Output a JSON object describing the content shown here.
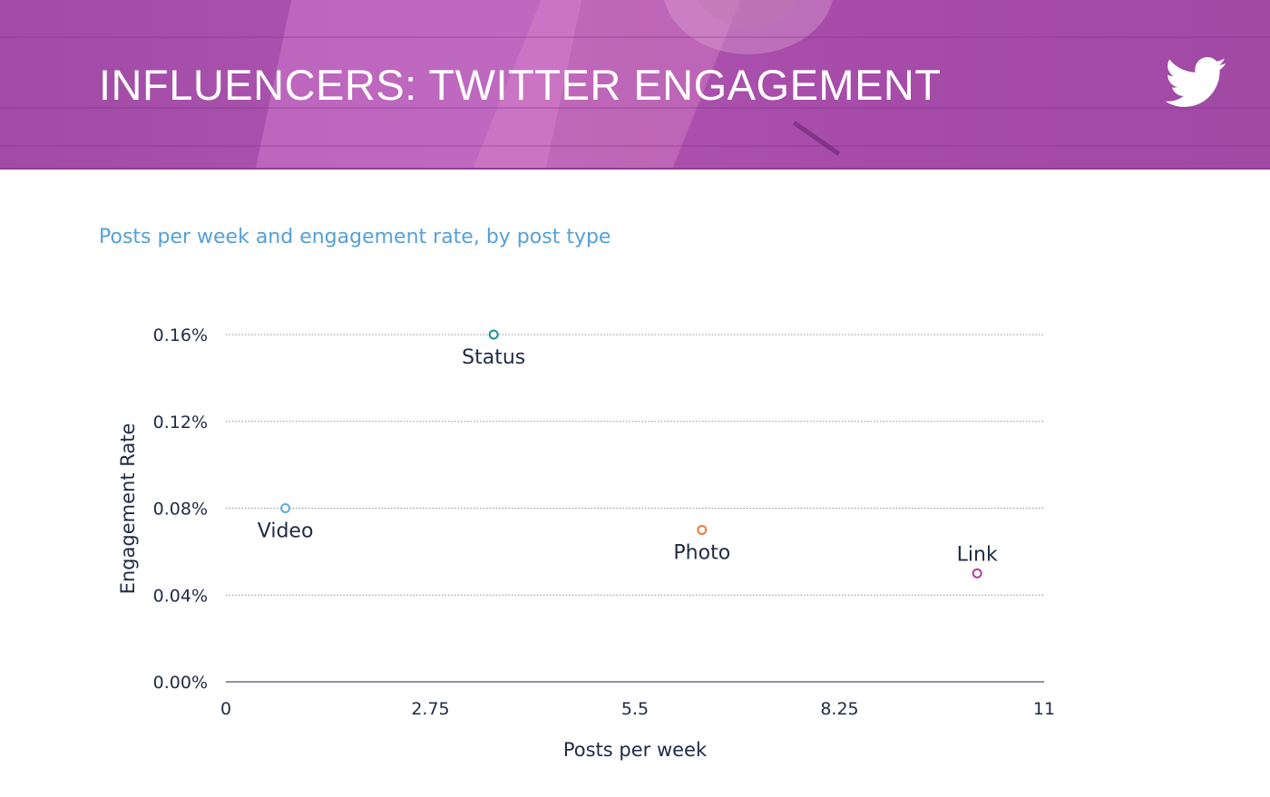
{
  "header": {
    "title": "INFLUENCERS: TWITTER ENGAGEMENT",
    "icon": "twitter-bird-icon",
    "icon_color": "#ffffff",
    "banner_color": "#a64ba8"
  },
  "chart_data": {
    "type": "scatter",
    "subtitle": "Posts per week and engagement rate, by post type",
    "xlabel": "Posts per week",
    "ylabel": "Engagement Rate",
    "xlim": [
      0,
      11
    ],
    "ylim": [
      0,
      0.16
    ],
    "x_ticks": [
      0,
      2.75,
      5.5,
      8.25,
      11
    ],
    "x_tick_labels": [
      "0",
      "2.75",
      "5.5",
      "8.25",
      "11"
    ],
    "y_ticks": [
      0,
      0.04,
      0.08,
      0.12,
      0.16
    ],
    "y_tick_labels": [
      "0.00%",
      "0.04%",
      "0.08%",
      "0.12%",
      "0.16%"
    ],
    "grid": "horizontal dotted",
    "points": [
      {
        "label": "Video",
        "x": 0.8,
        "y": 0.08,
        "color": "#5aaee0",
        "label_position": "below"
      },
      {
        "label": "Status",
        "x": 3.6,
        "y": 0.16,
        "color": "#1a8e96",
        "label_position": "below"
      },
      {
        "label": "Photo",
        "x": 6.4,
        "y": 0.07,
        "color": "#f07a3a",
        "label_position": "below"
      },
      {
        "label": "Link",
        "x": 10.1,
        "y": 0.05,
        "color": "#b0409e",
        "label_position": "above"
      }
    ]
  }
}
